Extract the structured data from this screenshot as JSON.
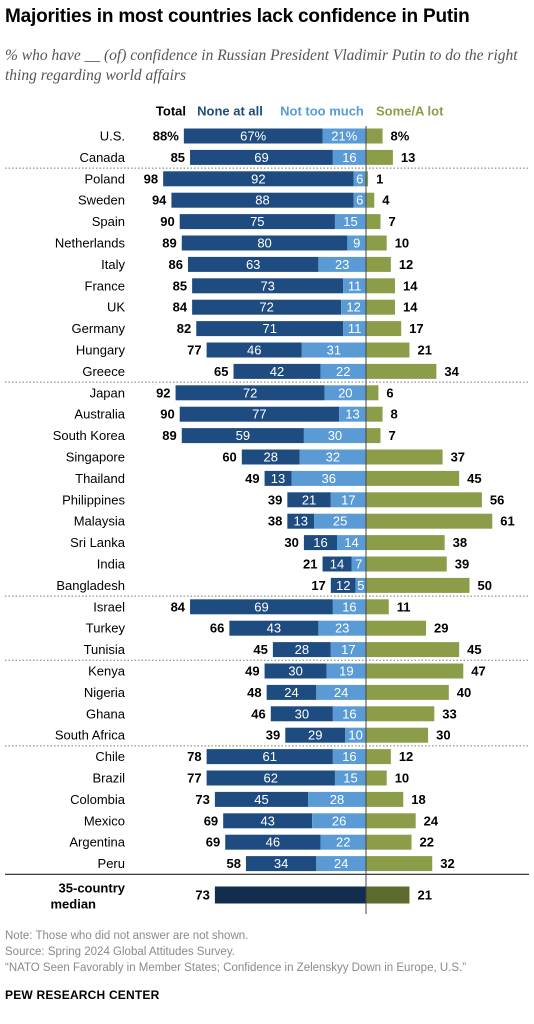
{
  "title": "Majorities in most countries lack confidence in Putin",
  "subtitle": "% who have __ (of) confidence in Russian President Vladimir Putin to do the right thing regarding world affairs",
  "notes": [
    "Note: Those who did not answer are not shown.",
    "Source: Spring 2024 Global Attitudes Survey.",
    "“NATO Seen Favorably in Member States; Confidence in Zelenskyy Down in Europe, U.S.”"
  ],
  "source_org": "PEW RESEARCH CENTER",
  "colors": {
    "none_at_all": "#1f4c80",
    "not_too_much": "#5a9bd5",
    "some_a_lot": "#8c9d4a",
    "median_none": "#132d4f",
    "median_not_too_much": "#173a63",
    "median_some": "#5e6b2f"
  },
  "chart_data": {
    "type": "bar",
    "orientation": "horizontal-diverging",
    "column_headers": {
      "total": "Total",
      "none_at_all": "None at all",
      "not_too_much": "Not too much",
      "some_a_lot": "Some/A lot"
    },
    "series": [
      {
        "name": "None at all",
        "key": "none"
      },
      {
        "name": "Not too much",
        "key": "not_much"
      },
      {
        "name": "Some/A lot",
        "key": "some"
      }
    ],
    "rows": [
      {
        "country": "U.S.",
        "total": "88%",
        "none": 67,
        "none_label": "67%",
        "not_much": 21,
        "not_much_label": "21%",
        "some": 8,
        "some_label": "8%"
      },
      {
        "country": "Canada",
        "total": "85",
        "none": 69,
        "none_label": "69",
        "not_much": 16,
        "not_much_label": "16",
        "some": 13,
        "some_label": "13"
      },
      {
        "country": "Poland",
        "total": "98",
        "none": 92,
        "none_label": "92",
        "not_much": 6,
        "not_much_label": "6",
        "some": 1,
        "some_label": "1"
      },
      {
        "country": "Sweden",
        "total": "94",
        "none": 88,
        "none_label": "88",
        "not_much": 6,
        "not_much_label": "6",
        "some": 4,
        "some_label": "4"
      },
      {
        "country": "Spain",
        "total": "90",
        "none": 75,
        "none_label": "75",
        "not_much": 15,
        "not_much_label": "15",
        "some": 7,
        "some_label": "7"
      },
      {
        "country": "Netherlands",
        "total": "89",
        "none": 80,
        "none_label": "80",
        "not_much": 9,
        "not_much_label": "9",
        "some": 10,
        "some_label": "10"
      },
      {
        "country": "Italy",
        "total": "86",
        "none": 63,
        "none_label": "63",
        "not_much": 23,
        "not_much_label": "23",
        "some": 12,
        "some_label": "12"
      },
      {
        "country": "France",
        "total": "85",
        "none": 73,
        "none_label": "73",
        "not_much": 11,
        "not_much_label": "11",
        "some": 14,
        "some_label": "14"
      },
      {
        "country": "UK",
        "total": "84",
        "none": 72,
        "none_label": "72",
        "not_much": 12,
        "not_much_label": "12",
        "some": 14,
        "some_label": "14"
      },
      {
        "country": "Germany",
        "total": "82",
        "none": 71,
        "none_label": "71",
        "not_much": 11,
        "not_much_label": "11",
        "some": 17,
        "some_label": "17"
      },
      {
        "country": "Hungary",
        "total": "77",
        "none": 46,
        "none_label": "46",
        "not_much": 31,
        "not_much_label": "31",
        "some": 21,
        "some_label": "21"
      },
      {
        "country": "Greece",
        "total": "65",
        "none": 42,
        "none_label": "42",
        "not_much": 22,
        "not_much_label": "22",
        "some": 34,
        "some_label": "34"
      },
      {
        "country": "Japan",
        "total": "92",
        "none": 72,
        "none_label": "72",
        "not_much": 20,
        "not_much_label": "20",
        "some": 6,
        "some_label": "6"
      },
      {
        "country": "Australia",
        "total": "90",
        "none": 77,
        "none_label": "77",
        "not_much": 13,
        "not_much_label": "13",
        "some": 8,
        "some_label": "8"
      },
      {
        "country": "South Korea",
        "total": "89",
        "none": 59,
        "none_label": "59",
        "not_much": 30,
        "not_much_label": "30",
        "some": 7,
        "some_label": "7"
      },
      {
        "country": "Singapore",
        "total": "60",
        "none": 28,
        "none_label": "28",
        "not_much": 32,
        "not_much_label": "32",
        "some": 37,
        "some_label": "37"
      },
      {
        "country": "Thailand",
        "total": "49",
        "none": 13,
        "none_label": "13",
        "not_much": 36,
        "not_much_label": "36",
        "some": 45,
        "some_label": "45"
      },
      {
        "country": "Philippines",
        "total": "39",
        "none": 21,
        "none_label": "21",
        "not_much": 17,
        "not_much_label": "17",
        "some": 56,
        "some_label": "56"
      },
      {
        "country": "Malaysia",
        "total": "38",
        "none": 13,
        "none_label": "13",
        "not_much": 25,
        "not_much_label": "25",
        "some": 61,
        "some_label": "61"
      },
      {
        "country": "Sri Lanka",
        "total": "30",
        "none": 16,
        "none_label": "16",
        "not_much": 14,
        "not_much_label": "14",
        "some": 38,
        "some_label": "38"
      },
      {
        "country": "India",
        "total": "21",
        "none": 14,
        "none_label": "14",
        "not_much": 7,
        "not_much_label": "7",
        "some": 39,
        "some_label": "39"
      },
      {
        "country": "Bangladesh",
        "total": "17",
        "none": 12,
        "none_label": "12",
        "not_much": 5,
        "not_much_label": "5",
        "some": 50,
        "some_label": "50"
      },
      {
        "country": "Israel",
        "total": "84",
        "none": 69,
        "none_label": "69",
        "not_much": 16,
        "not_much_label": "16",
        "some": 11,
        "some_label": "11"
      },
      {
        "country": "Turkey",
        "total": "66",
        "none": 43,
        "none_label": "43",
        "not_much": 23,
        "not_much_label": "23",
        "some": 29,
        "some_label": "29"
      },
      {
        "country": "Tunisia",
        "total": "45",
        "none": 28,
        "none_label": "28",
        "not_much": 17,
        "not_much_label": "17",
        "some": 45,
        "some_label": "45"
      },
      {
        "country": "Kenya",
        "total": "49",
        "none": 30,
        "none_label": "30",
        "not_much": 19,
        "not_much_label": "19",
        "some": 47,
        "some_label": "47"
      },
      {
        "country": "Nigeria",
        "total": "48",
        "none": 24,
        "none_label": "24",
        "not_much": 24,
        "not_much_label": "24",
        "some": 40,
        "some_label": "40"
      },
      {
        "country": "Ghana",
        "total": "46",
        "none": 30,
        "none_label": "30",
        "not_much": 16,
        "not_much_label": "16",
        "some": 33,
        "some_label": "33"
      },
      {
        "country": "South Africa",
        "total": "39",
        "none": 29,
        "none_label": "29",
        "not_much": 10,
        "not_much_label": "10",
        "some": 30,
        "some_label": "30"
      },
      {
        "country": "Chile",
        "total": "78",
        "none": 61,
        "none_label": "61",
        "not_much": 16,
        "not_much_label": "16",
        "some": 12,
        "some_label": "12"
      },
      {
        "country": "Brazil",
        "total": "77",
        "none": 62,
        "none_label": "62",
        "not_much": 15,
        "not_much_label": "15",
        "some": 10,
        "some_label": "10"
      },
      {
        "country": "Colombia",
        "total": "73",
        "none": 45,
        "none_label": "45",
        "not_much": 28,
        "not_much_label": "28",
        "some": 18,
        "some_label": "18"
      },
      {
        "country": "Mexico",
        "total": "69",
        "none": 43,
        "none_label": "43",
        "not_much": 26,
        "not_much_label": "26",
        "some": 24,
        "some_label": "24"
      },
      {
        "country": "Argentina",
        "total": "69",
        "none": 46,
        "none_label": "46",
        "not_much": 22,
        "not_much_label": "22",
        "some": 22,
        "some_label": "22"
      },
      {
        "country": "Peru",
        "total": "58",
        "none": 34,
        "none_label": "34",
        "not_much": 24,
        "not_much_label": "24",
        "some": 32,
        "some_label": "32"
      }
    ],
    "group_breaks_after": [
      "Canada",
      "Greece",
      "Bangladesh",
      "Tunisia",
      "South Africa",
      "Peru"
    ],
    "median": {
      "label_lines": [
        "35-country",
        "median"
      ],
      "total": 73,
      "total_label": "73",
      "some": 21,
      "some_label": "21"
    }
  }
}
